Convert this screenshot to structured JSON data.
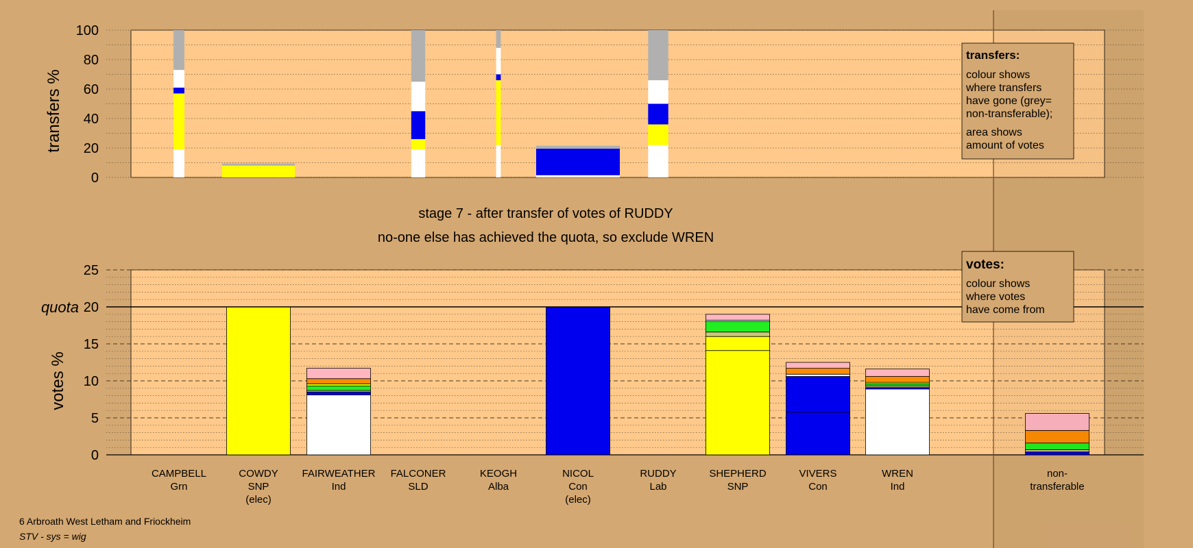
{
  "colors": {
    "background": "#d4a872",
    "plot": "#fec98a",
    "yellow": "#ffff00",
    "blue": "#0000ee",
    "white": "#ffffff",
    "grey": "#b0b0b0",
    "green": "#22ee22",
    "orange": "#ff8c00",
    "pink": "#ffb6c1",
    "olive": "#c8c878"
  },
  "chart_data": [
    {
      "type": "bar",
      "name": "transfers",
      "ylabel": "transfers %",
      "ylim": [
        0,
        100
      ],
      "yticks": [
        "0",
        "20",
        "40",
        "60",
        "80",
        "100"
      ],
      "legend": {
        "title": "transfers:",
        "lines1": [
          "colour shows",
          "where transfers",
          "have gone (grey=",
          "non-transferable);"
        ],
        "lines2": [
          "area shows",
          "amount of votes"
        ]
      },
      "bars": [
        {
          "candidate": "CAMPBELL",
          "widthShare": 0.7,
          "segments": [
            {
              "color": "white",
              "value": 19
            },
            {
              "color": "yellow",
              "value": 38
            },
            {
              "color": "blue",
              "value": 4
            },
            {
              "color": "white",
              "value": 12
            },
            {
              "color": "grey",
              "value": 27
            }
          ]
        },
        {
          "candidate": "COWDY",
          "widthShare": 4.7,
          "segments": [
            {
              "color": "yellow",
              "value": 8
            },
            {
              "color": "grey",
              "value": 1.5
            }
          ]
        },
        {
          "candidate": "FALCONER",
          "widthShare": 0.9,
          "segments": [
            {
              "color": "white",
              "value": 19
            },
            {
              "color": "yellow",
              "value": 7
            },
            {
              "color": "blue",
              "value": 19
            },
            {
              "color": "white",
              "value": 20
            },
            {
              "color": "grey",
              "value": 35
            }
          ]
        },
        {
          "candidate": "KEOGH",
          "widthShare": 0.3,
          "segments": [
            {
              "color": "white",
              "value": 22
            },
            {
              "color": "yellow",
              "value": 44
            },
            {
              "color": "blue",
              "value": 4
            },
            {
              "color": "white",
              "value": 18
            },
            {
              "color": "grey",
              "value": 12
            }
          ]
        },
        {
          "candidate": "NICOL",
          "widthShare": 5.4,
          "segments": [
            {
              "color": "white",
              "value": 1.5
            },
            {
              "color": "blue",
              "value": 18
            },
            {
              "color": "grey",
              "value": 2
            }
          ]
        },
        {
          "candidate": "RUDDY",
          "widthShare": 1.3,
          "segments": [
            {
              "color": "white",
              "value": 22
            },
            {
              "color": "yellow",
              "value": 14
            },
            {
              "color": "blue",
              "value": 14
            },
            {
              "color": "white",
              "value": 16
            },
            {
              "color": "grey",
              "value": 34
            }
          ]
        }
      ]
    },
    {
      "type": "bar",
      "name": "votes",
      "ylabel": "votes %",
      "ylim": [
        0,
        25
      ],
      "yticks": [
        "0",
        "5",
        "10",
        "15",
        "20",
        "25"
      ],
      "quota": 20,
      "quotaLabel": "quota",
      "legend": {
        "title": "votes:",
        "lines": [
          "colour shows",
          "where votes",
          "have come from"
        ]
      },
      "categories": [
        {
          "name": "CAMPBELL",
          "party": "Grn",
          "note": ""
        },
        {
          "name": "COWDY",
          "party": "SNP",
          "note": "(elec)"
        },
        {
          "name": "FAIRWEATHER",
          "party": "Ind",
          "note": ""
        },
        {
          "name": "FALCONER",
          "party": "SLD",
          "note": ""
        },
        {
          "name": "KEOGH",
          "party": "Alba",
          "note": ""
        },
        {
          "name": "NICOL",
          "party": "Con",
          "note": "(elec)"
        },
        {
          "name": "RUDDY",
          "party": "Lab",
          "note": ""
        },
        {
          "name": "SHEPHERD",
          "party": "SNP",
          "note": ""
        },
        {
          "name": "VIVERS",
          "party": "Con",
          "note": ""
        },
        {
          "name": "WREN",
          "party": "Ind",
          "note": ""
        }
      ],
      "nonTransferable": {
        "line1": "non-",
        "line2": "transferable",
        "segments": [
          {
            "color": "blue",
            "value": 0.4
          },
          {
            "color": "olive",
            "value": 0.3
          },
          {
            "color": "green",
            "value": 0.9
          },
          {
            "color": "orange",
            "value": 1.7
          },
          {
            "color": "pink",
            "value": 2.3
          }
        ]
      },
      "bars": [
        {
          "candidate": "CAMPBELL",
          "segments": []
        },
        {
          "candidate": "COWDY",
          "segments": [
            {
              "color": "yellow",
              "value": 20
            }
          ]
        },
        {
          "candidate": "FAIRWEATHER",
          "segments": [
            {
              "color": "white",
              "value": 8.1
            },
            {
              "color": "blue",
              "value": 0.4
            },
            {
              "color": "olive",
              "value": 0.2
            },
            {
              "color": "green",
              "value": 0.6
            },
            {
              "color": "yellow",
              "value": 0.3
            },
            {
              "color": "orange",
              "value": 0.7
            },
            {
              "color": "pink",
              "value": 1.4
            }
          ]
        },
        {
          "candidate": "FALCONER",
          "segments": []
        },
        {
          "candidate": "KEOGH",
          "segments": []
        },
        {
          "candidate": "NICOL",
          "segments": [
            {
              "color": "blue",
              "value": 20
            }
          ]
        },
        {
          "candidate": "RUDDY",
          "segments": []
        },
        {
          "candidate": "SHEPHERD",
          "segments": [
            {
              "color": "yellow",
              "value": 14.1
            },
            {
              "color": "yellow",
              "value": 1.9
            },
            {
              "color": "olive",
              "value": 0.6
            },
            {
              "color": "green",
              "value": 1.4
            },
            {
              "color": "white",
              "value": 0.2
            },
            {
              "color": "pink",
              "value": 0.8
            }
          ]
        },
        {
          "candidate": "VIVERS",
          "segments": [
            {
              "color": "blue",
              "value": 5.8
            },
            {
              "color": "blue",
              "value": 4.8
            },
            {
              "color": "white",
              "value": 0.3
            },
            {
              "color": "orange",
              "value": 0.8
            },
            {
              "color": "pink",
              "value": 0.8
            }
          ]
        },
        {
          "candidate": "WREN",
          "segments": [
            {
              "color": "white",
              "value": 8.9
            },
            {
              "color": "blue",
              "value": 0.2
            },
            {
              "color": "olive",
              "value": 0.2
            },
            {
              "color": "green",
              "value": 0.3
            },
            {
              "color": "yellow",
              "value": 0.2
            },
            {
              "color": "orange",
              "value": 0.8
            },
            {
              "color": "pink",
              "value": 1.0
            }
          ]
        }
      ]
    }
  ],
  "stage": {
    "title": "stage 7 - after transfer of votes of RUDDY",
    "subtitle": "no-one else has achieved the quota, so exclude WREN"
  },
  "footer": {
    "ward": "6 Arbroath West Letham and Friockheim",
    "system": "STV - sys = wig"
  }
}
